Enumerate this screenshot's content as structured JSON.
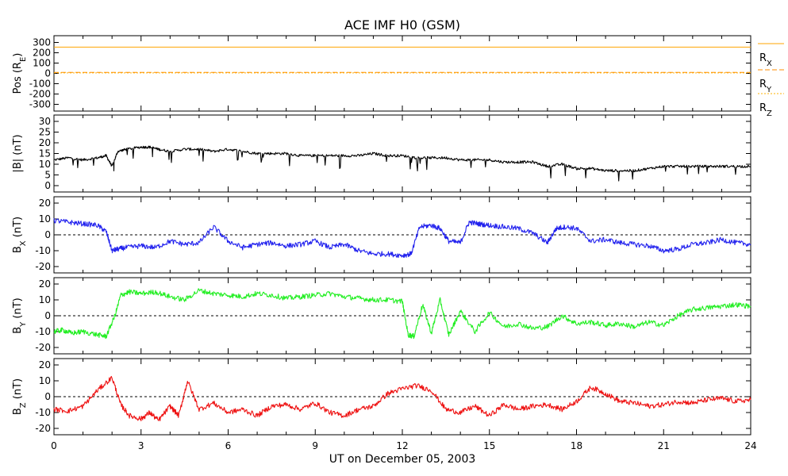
{
  "chart_data": {
    "type": "line",
    "title": "ACE IMF H0 (GSM)",
    "xlabel": "UT on December 05, 2003",
    "xlim": [
      0,
      24
    ],
    "x_ticks": [
      0,
      3,
      6,
      9,
      12,
      15,
      18,
      21,
      24
    ],
    "colors": {
      "pos_x": "#ffa500",
      "pos_y": "#ff8c00",
      "pos_z": "#ffb000",
      "bmag": "#000000",
      "bx": "#2222ee",
      "by": "#22ee22",
      "bz": "#ee1111",
      "zero_line": "#000000"
    },
    "panels": [
      {
        "id": "pos",
        "ylabel": "Pos (R",
        "ylabel_sub": "E",
        "ylabel_suffix": ")",
        "ylim": [
          -350,
          350
        ],
        "y_ticks": [
          300,
          200,
          100,
          0,
          -100,
          -200,
          -300
        ],
        "zero_line": false,
        "legend": [
          {
            "label": "R",
            "sub": "X"
          },
          {
            "label": "R",
            "sub": "Y"
          },
          {
            "label": "R",
            "sub": "Z"
          }
        ],
        "series": [
          {
            "key": "rx",
            "x": [
              0,
              24
            ],
            "y": [
              255,
              255
            ]
          },
          {
            "key": "ry",
            "x": [
              0,
              24
            ],
            "y": [
              10,
              10
            ]
          },
          {
            "key": "rz",
            "x": [
              0,
              24
            ],
            "y": [
              5,
              5
            ]
          }
        ]
      },
      {
        "id": "bmag",
        "ylabel": "|B| (nT)",
        "ylim": [
          0,
          30
        ],
        "y_ticks": [
          30,
          25,
          20,
          15,
          10,
          5,
          0
        ],
        "zero_line": false,
        "series": [
          {
            "key": "bmag",
            "x": [
              0,
              0.5,
              1,
              1.5,
              1.8,
              2,
              2.2,
              2.5,
              3,
              3.3,
              3.6,
              4,
              4.5,
              5,
              5.5,
              6,
              6.5,
              7,
              7.5,
              8,
              8.5,
              9,
              9.5,
              10,
              10.5,
              11,
              11.5,
              12,
              12.5,
              13,
              13.5,
              14,
              14.5,
              15,
              15.5,
              16,
              16.5,
              17,
              17.5,
              18,
              18.5,
              19,
              19.5,
              20,
              20.5,
              21,
              21.5,
              22,
              22.5,
              23,
              23.5,
              24
            ],
            "y": [
              12,
              13,
              12,
              13,
              14,
              9,
              16,
              17,
              18,
              18,
              17,
              16,
              17,
              17,
              16,
              17,
              16,
              15,
              15,
              15,
              14,
              14,
              14,
              14,
              14,
              15,
              14,
              14,
              13,
              13,
              13,
              12,
              12,
              12,
              11,
              11,
              11,
              9,
              10,
              8,
              8,
              7,
              7,
              7,
              8,
              9,
              9,
              9,
              9,
              9,
              9,
              9
            ]
          }
        ]
      },
      {
        "id": "bx",
        "ylabel": "B",
        "ylabel_sub": "X",
        "ylabel_suffix": " (nT)",
        "ylim": [
          -20,
          20
        ],
        "y_ticks": [
          20,
          10,
          0,
          -10,
          -20
        ],
        "zero_line": true,
        "series": [
          {
            "key": "bx",
            "x": [
              0,
              0.5,
              1,
              1.5,
              1.8,
              2,
              2.2,
              2.5,
              3,
              3.5,
              4,
              4.5,
              5,
              5.5,
              6,
              6.5,
              7,
              7.5,
              8,
              8.5,
              9,
              9.5,
              10,
              10.5,
              11,
              11.5,
              12,
              12.3,
              12.6,
              13,
              13.3,
              13.6,
              14,
              14.3,
              14.6,
              15,
              15.5,
              16,
              16.5,
              17,
              17.3,
              17.6,
              18,
              18.5,
              19,
              19.5,
              20,
              20.5,
              21,
              21.5,
              22,
              22.5,
              23,
              23.5,
              24
            ],
            "y": [
              9,
              8,
              7,
              6,
              2,
              -10,
              -9,
              -8,
              -7,
              -8,
              -4,
              -6,
              -5,
              5,
              -4,
              -8,
              -6,
              -5,
              -7,
              -6,
              -4,
              -8,
              -6,
              -10,
              -12,
              -12,
              -13,
              -12,
              5,
              6,
              4,
              -4,
              -5,
              8,
              7,
              6,
              5,
              4,
              1,
              -5,
              4,
              5,
              4,
              -4,
              -3,
              -5,
              -6,
              -7,
              -10,
              -9,
              -6,
              -5,
              -3,
              -5,
              -6
            ]
          }
        ]
      },
      {
        "id": "by",
        "ylabel": "B",
        "ylabel_sub": "Y",
        "ylabel_suffix": " (nT)",
        "ylim": [
          -20,
          20
        ],
        "y_ticks": [
          20,
          10,
          0,
          -10,
          -20
        ],
        "zero_line": true,
        "series": [
          {
            "key": "by",
            "x": [
              0,
              0.3,
              0.6,
              1,
              1.5,
              1.8,
              2.1,
              2.3,
              2.6,
              3,
              3.5,
              4,
              4.5,
              5,
              5.5,
              6,
              6.5,
              7,
              7.5,
              8,
              8.5,
              9,
              9.5,
              10,
              10.5,
              11,
              11.5,
              12,
              12.2,
              12.4,
              12.7,
              13,
              13.3,
              13.6,
              14,
              14.5,
              15,
              15.5,
              16,
              16.5,
              17,
              17.5,
              18,
              18.5,
              19,
              19.5,
              20,
              20.5,
              21,
              21.5,
              22,
              22.5,
              23,
              23.5,
              24
            ],
            "y": [
              -10,
              -9,
              -11,
              -10,
              -12,
              -13,
              0,
              13,
              15,
              14,
              15,
              12,
              10,
              16,
              14,
              13,
              12,
              14,
              13,
              11,
              12,
              13,
              14,
              12,
              11,
              10,
              10,
              9,
              -12,
              -13,
              7,
              -11,
              10,
              -12,
              3,
              -10,
              2,
              -7,
              -5,
              -8,
              -7,
              0,
              -5,
              -4,
              -6,
              -5,
              -7,
              -4,
              -6,
              0,
              4,
              5,
              6,
              7,
              6
            ]
          }
        ]
      },
      {
        "id": "bz",
        "ylabel": "B",
        "ylabel_sub": "Z",
        "ylabel_suffix": " (nT)",
        "ylim": [
          -20,
          20
        ],
        "y_ticks": [
          20,
          10,
          0,
          -10,
          -20
        ],
        "zero_line": true,
        "series": [
          {
            "key": "bz",
            "x": [
              0,
              0.5,
              1,
              1.5,
              2,
              2.3,
              2.6,
              3,
              3.3,
              3.6,
              4,
              4.3,
              4.6,
              5,
              5.5,
              6,
              6.5,
              7,
              7.5,
              8,
              8.5,
              9,
              9.5,
              10,
              10.5,
              11,
              11.5,
              12,
              12.5,
              13,
              13.5,
              14,
              14.5,
              15,
              15.5,
              16,
              16.5,
              17,
              17.5,
              18,
              18.5,
              19,
              19.5,
              20,
              20.5,
              21,
              21.5,
              22,
              22.5,
              23,
              23.5,
              24
            ],
            "y": [
              -8,
              -9,
              -6,
              4,
              12,
              -5,
              -12,
              -14,
              -10,
              -15,
              -6,
              -12,
              10,
              -8,
              -4,
              -10,
              -8,
              -12,
              -6,
              -5,
              -8,
              -4,
              -10,
              -12,
              -8,
              -6,
              2,
              5,
              7,
              4,
              -8,
              -10,
              -6,
              -12,
              -5,
              -8,
              -6,
              -5,
              -8,
              -3,
              6,
              2,
              -3,
              -4,
              -6,
              -5,
              -3,
              -4,
              -2,
              -1,
              -3,
              -2
            ]
          }
        ]
      }
    ]
  }
}
